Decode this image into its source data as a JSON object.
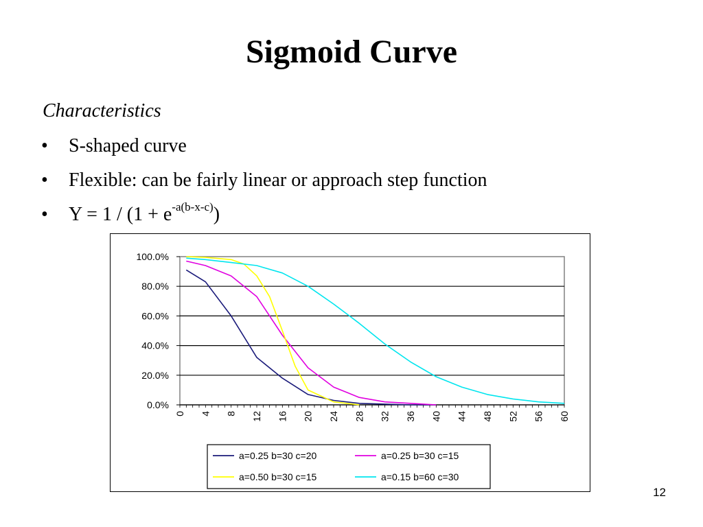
{
  "slide": {
    "title": "Sigmoid Curve",
    "heading": "Characteristics",
    "bullet_char": "•",
    "bullets": [
      "S-shaped curve",
      "Flexible:  can be fairly linear or approach step function"
    ],
    "formula": {
      "before": "Y = 1 / (1 + e",
      "superscript": "-a(b-x-c)",
      "after": ")"
    },
    "page_number": "12"
  },
  "chart_data": {
    "type": "line",
    "title": "",
    "xlabel": "",
    "ylabel": "",
    "x_ticks": [
      "0",
      "4",
      "8",
      "12",
      "16",
      "20",
      "24",
      "28",
      "32",
      "36",
      "40",
      "44",
      "48",
      "52",
      "56",
      "60"
    ],
    "y_ticks": [
      "0.0%",
      "20.0%",
      "40.0%",
      "60.0%",
      "80.0%",
      "100.0%"
    ],
    "ylim": [
      0,
      1
    ],
    "xlim": [
      0,
      60
    ],
    "grid": "horizontal",
    "legend_position": "bottom",
    "series": [
      {
        "name": "a=0.25 b=30 c=20",
        "color": "#1a1a7a",
        "x": [
          1,
          4,
          8,
          12,
          16,
          20,
          24,
          28,
          32,
          36,
          40
        ],
        "y": [
          0.91,
          0.83,
          0.6,
          0.32,
          0.18,
          0.07,
          0.03,
          0.01,
          0.005,
          0.0,
          0.0
        ]
      },
      {
        "name": "a=0.25 b=30 c=15",
        "color": "#e000e0",
        "x": [
          1,
          4,
          8,
          12,
          16,
          20,
          24,
          28,
          32,
          36,
          40
        ],
        "y": [
          0.97,
          0.94,
          0.87,
          0.73,
          0.47,
          0.25,
          0.12,
          0.05,
          0.02,
          0.01,
          0.0
        ]
      },
      {
        "name": "a=0.50 b=30 c=15",
        "color": "#ffff00",
        "x": [
          1,
          4,
          8,
          10,
          12,
          14,
          16,
          18,
          20,
          24,
          28
        ],
        "y": [
          1.0,
          0.995,
          0.98,
          0.95,
          0.87,
          0.73,
          0.5,
          0.26,
          0.1,
          0.02,
          0.0
        ]
      },
      {
        "name": "a=0.15 b=60 c=30",
        "color": "#00e5ee",
        "x": [
          1,
          4,
          8,
          12,
          16,
          20,
          24,
          28,
          32,
          36,
          40,
          44,
          48,
          52,
          56,
          60
        ],
        "y": [
          0.99,
          0.98,
          0.96,
          0.94,
          0.89,
          0.8,
          0.68,
          0.55,
          0.41,
          0.29,
          0.19,
          0.12,
          0.07,
          0.04,
          0.02,
          0.01
        ]
      }
    ]
  }
}
